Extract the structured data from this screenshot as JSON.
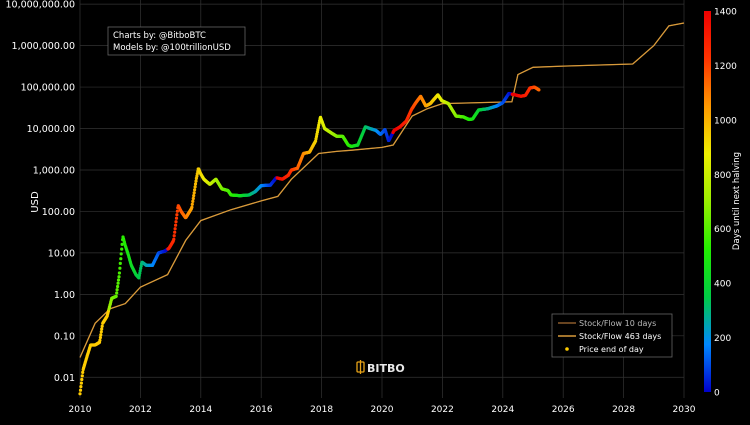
{
  "chart_data": {
    "type": "scatter",
    "y_scale": "log",
    "ylabel": "USD",
    "xlabel": "",
    "xlim": [
      2010,
      2030
    ],
    "ylim_log10": [
      -2.5,
      7.1
    ],
    "x_ticks": [
      2010,
      2012,
      2014,
      2016,
      2018,
      2020,
      2022,
      2024,
      2026,
      2028,
      2030
    ],
    "y_ticks": [
      {
        "value": 0.01,
        "label": "0.01"
      },
      {
        "value": 0.1,
        "label": "0.10"
      },
      {
        "value": 1,
        "label": "1.00"
      },
      {
        "value": 10,
        "label": "10.00"
      },
      {
        "value": 100,
        "label": "100.00"
      },
      {
        "value": 1000,
        "label": "1,000.00"
      },
      {
        "value": 10000,
        "label": "10,000.00"
      },
      {
        "value": 100000,
        "label": "100,000.00"
      },
      {
        "value": 1000000,
        "label": "1,000,000.00"
      },
      {
        "value": 10000000,
        "label": "10,000,000.00"
      }
    ],
    "credits": [
      "Charts by: @BitboBTC",
      "Models by: @100trillionUSD"
    ],
    "watermark": "BITBO",
    "colorbar": {
      "label": "Days until next halving",
      "range": [
        0,
        1400
      ],
      "ticks": [
        0,
        200,
        400,
        600,
        800,
        1000,
        1200,
        1400
      ],
      "colors": [
        "#0000cc",
        "#0088ff",
        "#00cc44",
        "#22ee00",
        "#99ee00",
        "#eeee00",
        "#ff9900",
        "#ff3300",
        "#ee0000"
      ]
    },
    "legend_position": "bottom-right",
    "series": [
      {
        "name": "Stock/Flow 10 days",
        "kind": "line",
        "color": "#8b5a2b",
        "points": [
          [
            2010.0,
            0.03
          ],
          [
            2010.5,
            0.2
          ],
          [
            2011.0,
            0.45
          ],
          [
            2011.5,
            0.6
          ],
          [
            2012.0,
            1.5
          ],
          [
            2012.9,
            3
          ],
          [
            2013.5,
            20
          ],
          [
            2014.0,
            60
          ],
          [
            2015.0,
            110
          ],
          [
            2016.0,
            180
          ],
          [
            2016.55,
            230
          ],
          [
            2017.0,
            600
          ],
          [
            2017.9,
            2500
          ],
          [
            2018.5,
            2800
          ],
          [
            2019.0,
            3000
          ],
          [
            2020.0,
            3500
          ],
          [
            2020.37,
            4000
          ],
          [
            2021.0,
            20000
          ],
          [
            2021.5,
            30000
          ],
          [
            2022.0,
            40000
          ],
          [
            2024.3,
            44000
          ],
          [
            2024.5,
            200000
          ],
          [
            2025.0,
            300000
          ],
          [
            2026.0,
            320000
          ],
          [
            2028.3,
            360000
          ],
          [
            2029.0,
            1000000
          ],
          [
            2029.5,
            3000000
          ],
          [
            2030.0,
            3500000
          ]
        ]
      },
      {
        "name": "Stock/Flow 463 days",
        "kind": "line",
        "color": "#d89a3a",
        "points": [
          [
            2010.0,
            0.03
          ],
          [
            2010.5,
            0.2
          ],
          [
            2011.0,
            0.45
          ],
          [
            2011.5,
            0.6
          ],
          [
            2012.0,
            1.5
          ],
          [
            2012.9,
            3
          ],
          [
            2013.5,
            20
          ],
          [
            2014.0,
            60
          ],
          [
            2015.0,
            110
          ],
          [
            2016.0,
            180
          ],
          [
            2016.55,
            230
          ],
          [
            2017.0,
            600
          ],
          [
            2017.9,
            2500
          ],
          [
            2018.5,
            2800
          ],
          [
            2019.0,
            3000
          ],
          [
            2020.0,
            3500
          ],
          [
            2020.37,
            4000
          ],
          [
            2021.0,
            20000
          ],
          [
            2021.5,
            30000
          ],
          [
            2022.0,
            40000
          ],
          [
            2024.3,
            44000
          ],
          [
            2024.5,
            200000
          ],
          [
            2025.0,
            300000
          ],
          [
            2026.0,
            320000
          ],
          [
            2028.3,
            360000
          ],
          [
            2029.0,
            1000000
          ],
          [
            2029.5,
            3000000
          ],
          [
            2030.0,
            3500000
          ]
        ]
      },
      {
        "name": "Price end of day",
        "kind": "scatter",
        "color": "#ffcc00",
        "dot_size": 1.6,
        "gap": 0.015,
        "halvings": [
          2012.9,
          2016.52,
          2020.36,
          2024.3,
          2028.3
        ],
        "points": [
          [
            2010.0,
            0.004
          ],
          [
            2010.1,
            0.015
          ],
          [
            2010.25,
            0.035
          ],
          [
            2010.35,
            0.06
          ],
          [
            2010.5,
            0.06
          ],
          [
            2010.65,
            0.07
          ],
          [
            2010.75,
            0.2
          ],
          [
            2010.9,
            0.3
          ],
          [
            2011.05,
            0.8
          ],
          [
            2011.2,
            0.9
          ],
          [
            2011.3,
            3
          ],
          [
            2011.42,
            25
          ],
          [
            2011.5,
            15
          ],
          [
            2011.6,
            9
          ],
          [
            2011.7,
            5
          ],
          [
            2011.85,
            3
          ],
          [
            2011.95,
            2.5
          ],
          [
            2012.05,
            6
          ],
          [
            2012.2,
            5
          ],
          [
            2012.4,
            5
          ],
          [
            2012.6,
            10
          ],
          [
            2012.8,
            11
          ],
          [
            2012.95,
            13
          ],
          [
            2013.1,
            20
          ],
          [
            2013.25,
            140
          ],
          [
            2013.35,
            100
          ],
          [
            2013.5,
            70
          ],
          [
            2013.7,
            120
          ],
          [
            2013.85,
            600
          ],
          [
            2013.92,
            1100
          ],
          [
            2014.0,
            800
          ],
          [
            2014.1,
            600
          ],
          [
            2014.3,
            450
          ],
          [
            2014.5,
            600
          ],
          [
            2014.7,
            350
          ],
          [
            2014.9,
            320
          ],
          [
            2015.0,
            250
          ],
          [
            2015.3,
            240
          ],
          [
            2015.6,
            250
          ],
          [
            2015.8,
            300
          ],
          [
            2016.0,
            420
          ],
          [
            2016.3,
            430
          ],
          [
            2016.5,
            650
          ],
          [
            2016.7,
            600
          ],
          [
            2016.9,
            750
          ],
          [
            2017.0,
            1000
          ],
          [
            2017.2,
            1100
          ],
          [
            2017.4,
            2500
          ],
          [
            2017.6,
            2700
          ],
          [
            2017.8,
            5000
          ],
          [
            2017.96,
            19000
          ],
          [
            2018.1,
            10000
          ],
          [
            2018.3,
            8000
          ],
          [
            2018.5,
            6500
          ],
          [
            2018.7,
            6500
          ],
          [
            2018.88,
            4000
          ],
          [
            2018.98,
            3700
          ],
          [
            2019.2,
            4000
          ],
          [
            2019.45,
            11000
          ],
          [
            2019.6,
            10000
          ],
          [
            2019.8,
            9000
          ],
          [
            2019.95,
            7200
          ],
          [
            2020.1,
            9500
          ],
          [
            2020.22,
            5000
          ],
          [
            2020.4,
            9000
          ],
          [
            2020.6,
            11000
          ],
          [
            2020.8,
            15000
          ],
          [
            2020.98,
            29000
          ],
          [
            2021.1,
            40000
          ],
          [
            2021.28,
            60000
          ],
          [
            2021.45,
            35000
          ],
          [
            2021.6,
            40000
          ],
          [
            2021.85,
            65000
          ],
          [
            2021.98,
            47000
          ],
          [
            2022.2,
            40000
          ],
          [
            2022.45,
            20000
          ],
          [
            2022.7,
            19000
          ],
          [
            2022.88,
            16500
          ],
          [
            2023.0,
            17000
          ],
          [
            2023.2,
            28000
          ],
          [
            2023.5,
            30000
          ],
          [
            2023.8,
            35000
          ],
          [
            2024.0,
            42000
          ],
          [
            2024.2,
            70000
          ],
          [
            2024.4,
            65000
          ],
          [
            2024.6,
            60000
          ],
          [
            2024.75,
            63000
          ],
          [
            2024.9,
            95000
          ],
          [
            2025.05,
            100000
          ],
          [
            2025.2,
            85000
          ]
        ]
      }
    ]
  }
}
